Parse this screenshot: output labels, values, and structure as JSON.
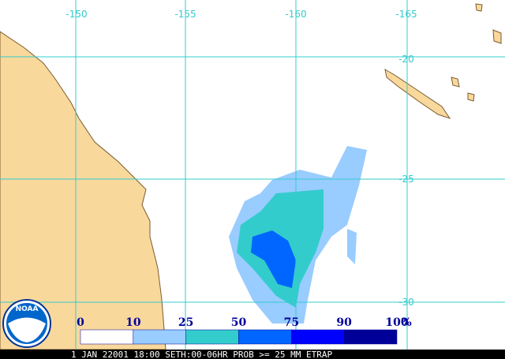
{
  "map": {
    "lon_labels": [
      "-150",
      "-155",
      "-160",
      "-165"
    ],
    "lat_labels": [
      "-20",
      "-25",
      "-30"
    ]
  },
  "legend": {
    "labels": [
      "0",
      "10",
      "25",
      "50",
      "75",
      "90",
      "100"
    ],
    "unit": "%",
    "colors": [
      "#ffffff",
      "#99ccff",
      "#33cccc",
      "#0066ff",
      "#0000ff",
      "#000099"
    ]
  },
  "logo": "NOAA",
  "footer": "1 JAN 22001 18:00 SETH:00-06HR PROB >= 25 MM ETRAP"
}
